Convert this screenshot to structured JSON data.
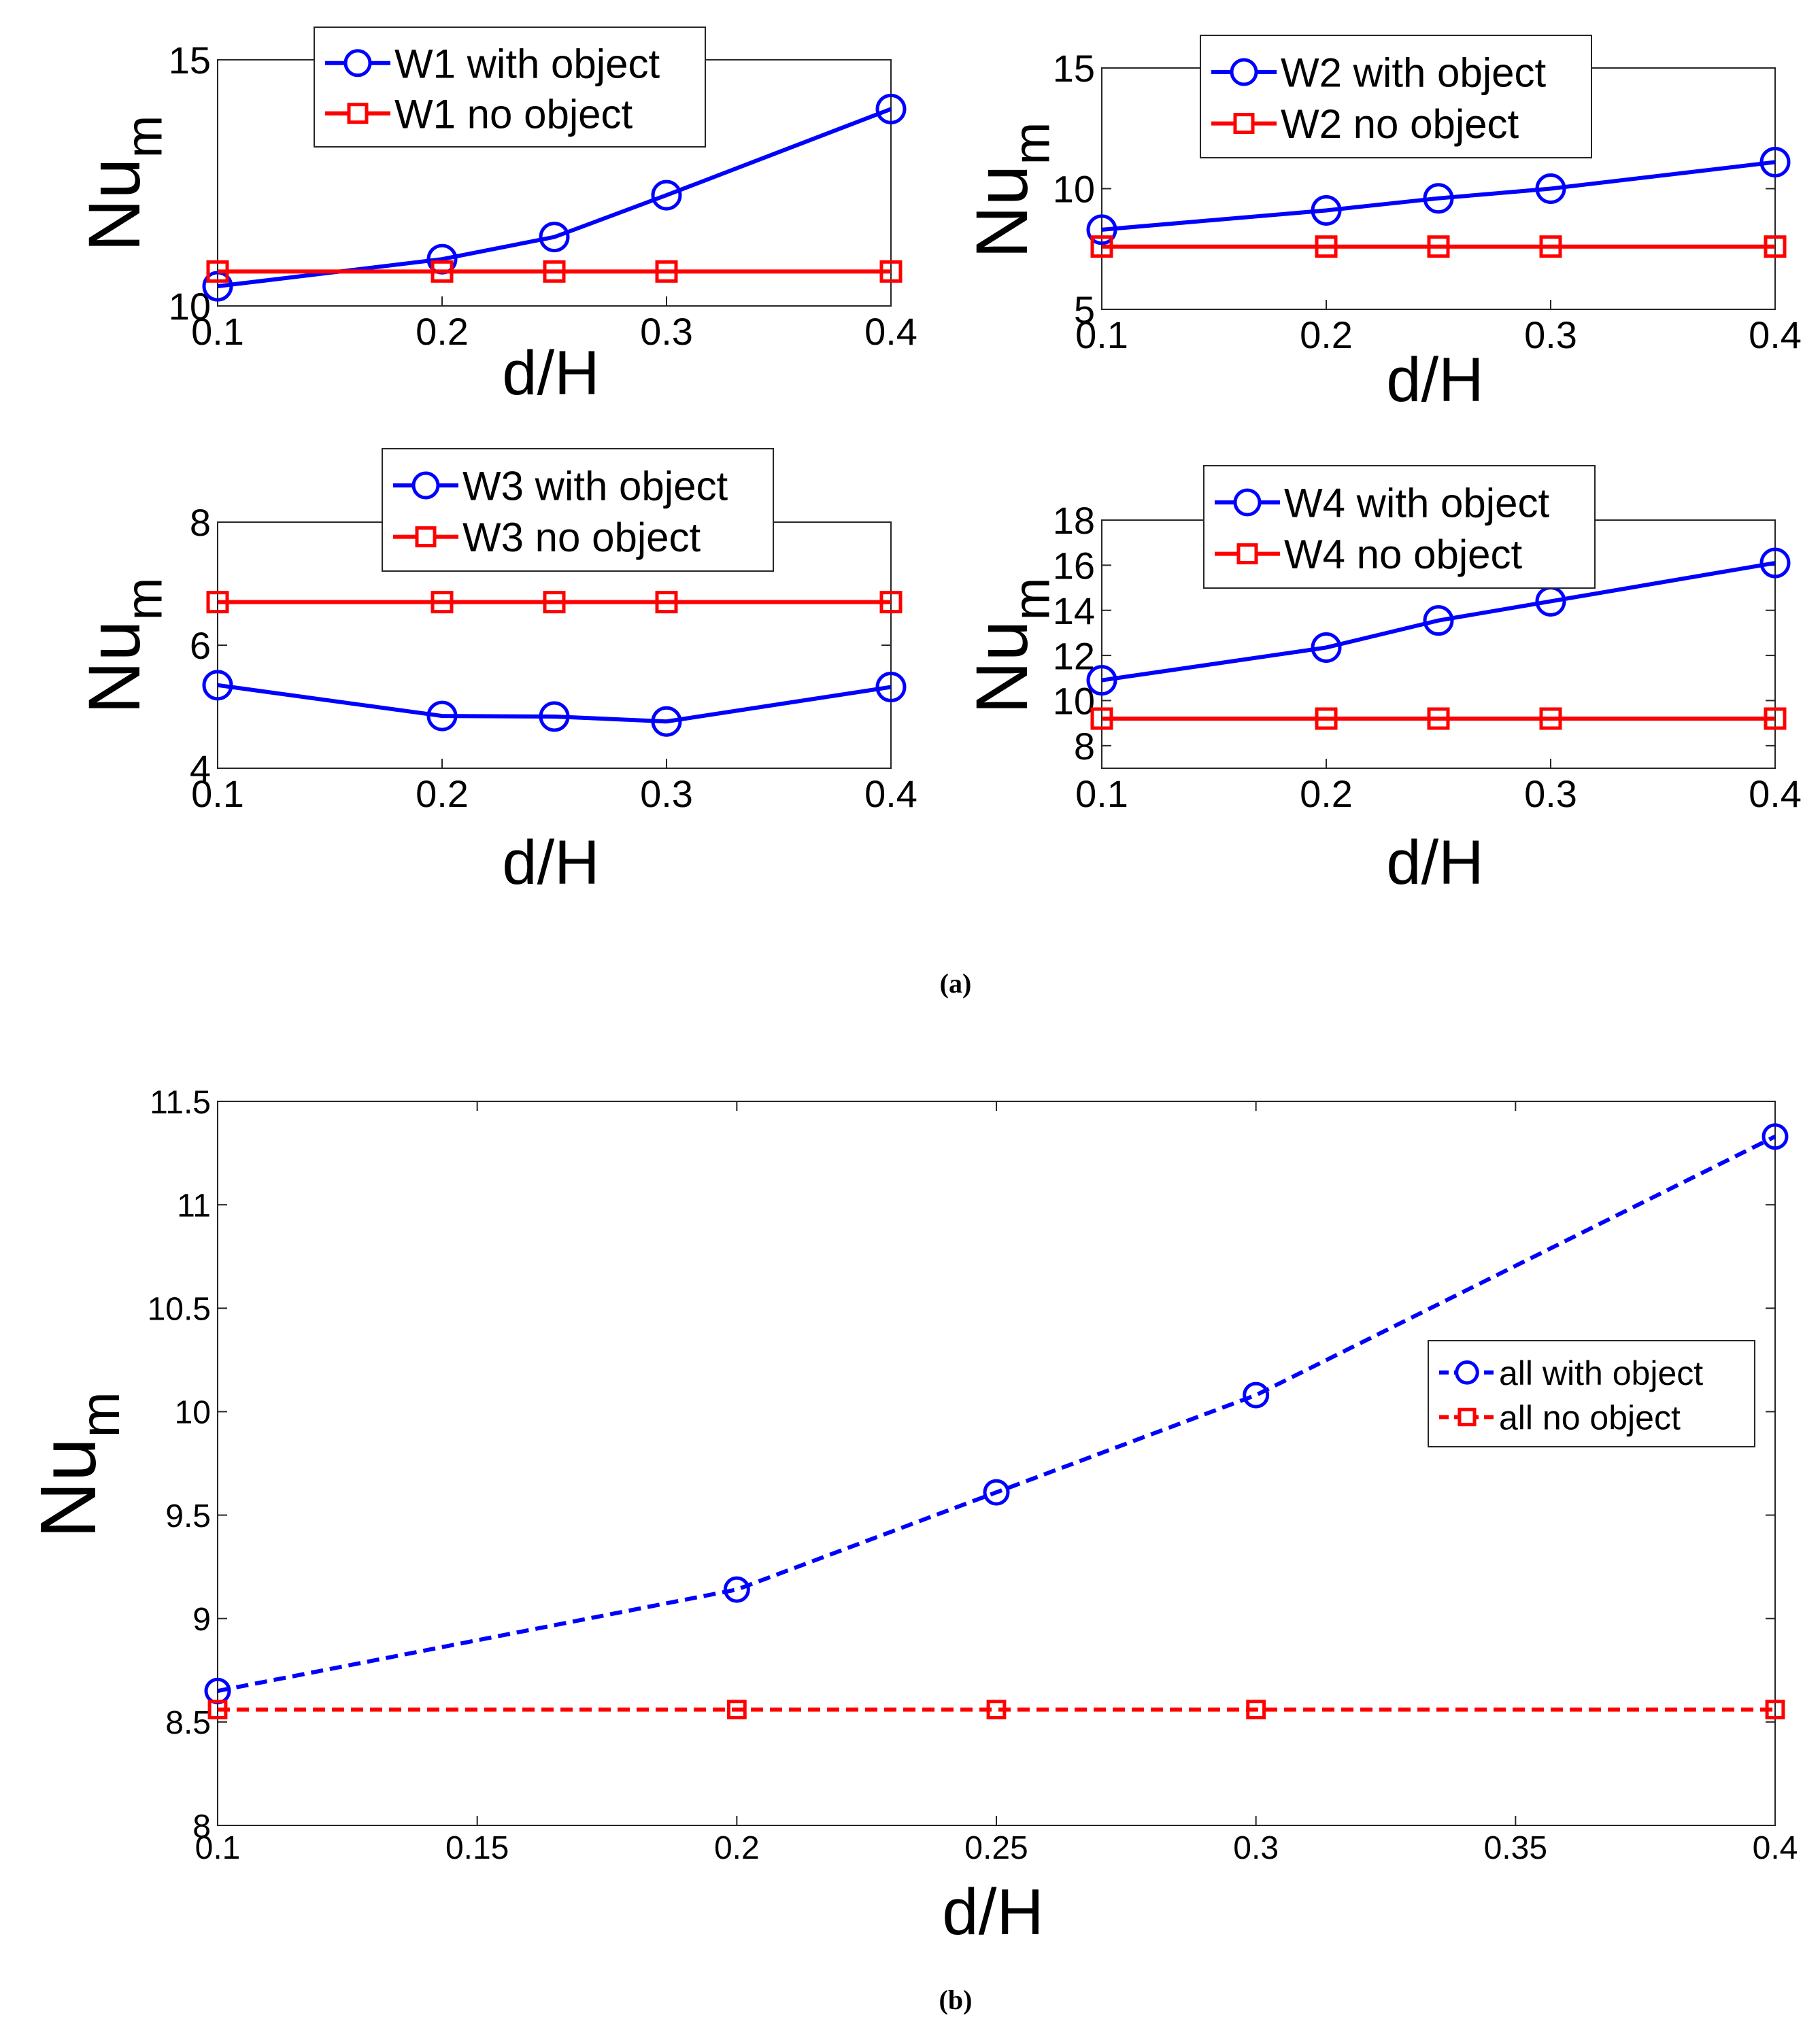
{
  "captions": {
    "a": "(a)",
    "b": "(b)"
  },
  "colors": {
    "with_object": "#0000ff",
    "no_object": "#ff0000",
    "axis": "#262626"
  },
  "chart_data": [
    {
      "id": "w1",
      "type": "line",
      "x": [
        0.1,
        0.2,
        0.25,
        0.3,
        0.4
      ],
      "xlim": [
        0.1,
        0.4
      ],
      "ylim": [
        10,
        15
      ],
      "xticks": [
        "0.1",
        "0.2",
        "0.3",
        "0.4"
      ],
      "yticks": [
        "10",
        "15"
      ],
      "xlabel": "d/H",
      "ylabel": "Nu",
      "ylabel_sub": "m",
      "legend_position": "top-right",
      "series": [
        {
          "name": "W1 with object",
          "marker": "circle",
          "style": "solid",
          "values": [
            10.4,
            10.95,
            11.4,
            12.25,
            14.0
          ]
        },
        {
          "name": "W1 no object",
          "marker": "square",
          "style": "solid",
          "values": [
            10.7,
            10.7,
            10.7,
            10.7,
            10.7
          ]
        }
      ]
    },
    {
      "id": "w2",
      "type": "line",
      "x": [
        0.1,
        0.2,
        0.25,
        0.3,
        0.4
      ],
      "xlim": [
        0.1,
        0.4
      ],
      "ylim": [
        5,
        15
      ],
      "xticks": [
        "0.1",
        "0.2",
        "0.3",
        "0.4"
      ],
      "yticks": [
        "5",
        "10",
        "15"
      ],
      "xlabel": "d/H",
      "ylabel": "Nu",
      "ylabel_sub": "m",
      "legend_position": "top-right",
      "series": [
        {
          "name": "W2 with object",
          "marker": "circle",
          "style": "solid",
          "values": [
            8.3,
            9.1,
            9.6,
            10.0,
            11.1
          ]
        },
        {
          "name": "W2 no object",
          "marker": "square",
          "style": "solid",
          "values": [
            7.6,
            7.6,
            7.6,
            7.6,
            7.6
          ]
        }
      ]
    },
    {
      "id": "w3",
      "type": "line",
      "x": [
        0.1,
        0.2,
        0.25,
        0.3,
        0.4
      ],
      "xlim": [
        0.1,
        0.4
      ],
      "ylim": [
        4,
        8
      ],
      "xticks": [
        "0.1",
        "0.2",
        "0.3",
        "0.4"
      ],
      "yticks": [
        "4",
        "6",
        "8"
      ],
      "xlabel": "d/H",
      "ylabel": "Nu",
      "ylabel_sub": "m",
      "legend_position": "top-right",
      "series": [
        {
          "name": "W3 with object",
          "marker": "circle",
          "style": "solid",
          "values": [
            5.35,
            4.85,
            4.84,
            4.76,
            5.32
          ]
        },
        {
          "name": "W3 no object",
          "marker": "square",
          "style": "solid",
          "values": [
            6.7,
            6.7,
            6.7,
            6.7,
            6.7
          ]
        }
      ]
    },
    {
      "id": "w4",
      "type": "line",
      "x": [
        0.1,
        0.2,
        0.25,
        0.3,
        0.4
      ],
      "xlim": [
        0.1,
        0.4
      ],
      "ylim": [
        7,
        18
      ],
      "xticks": [
        "0.1",
        "0.2",
        "0.3",
        "0.4"
      ],
      "yticks": [
        "8",
        "10",
        "12",
        "14",
        "16",
        "18"
      ],
      "xlabel": "d/H",
      "ylabel": "Nu",
      "ylabel_sub": "m",
      "legend_position": "top-right",
      "series": [
        {
          "name": "W4 with object",
          "marker": "circle",
          "style": "solid",
          "values": [
            10.9,
            12.35,
            13.55,
            14.4,
            16.1
          ]
        },
        {
          "name": "W4 no object",
          "marker": "square",
          "style": "solid",
          "values": [
            9.2,
            9.2,
            9.2,
            9.2,
            9.2
          ]
        }
      ]
    },
    {
      "id": "all",
      "type": "line",
      "x": [
        0.1,
        0.2,
        0.25,
        0.3,
        0.4
      ],
      "xlim": [
        0.1,
        0.4
      ],
      "ylim": [
        8,
        11.5
      ],
      "xticks": [
        "0.1",
        "0.15",
        "0.2",
        "0.25",
        "0.3",
        "0.35",
        "0.4"
      ],
      "yticks": [
        "8",
        "8.5",
        "9",
        "9.5",
        "10",
        "10.5",
        "11",
        "11.5"
      ],
      "xlabel": "d/H",
      "ylabel": "Nu",
      "ylabel_sub": "m",
      "legend_position": "right",
      "series": [
        {
          "name": "all with object",
          "marker": "circle",
          "style": "dashed",
          "values": [
            8.65,
            9.14,
            9.61,
            10.08,
            11.33
          ]
        },
        {
          "name": "all no object",
          "marker": "square",
          "style": "dashed",
          "values": [
            8.56,
            8.56,
            8.56,
            8.56,
            8.56
          ]
        }
      ]
    }
  ]
}
